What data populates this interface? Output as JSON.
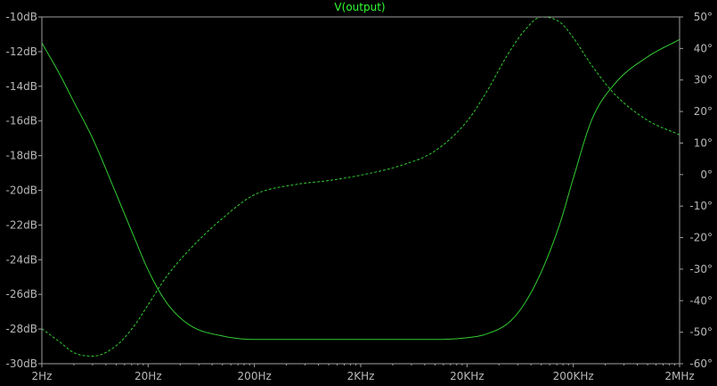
{
  "chart_data": {
    "type": "line",
    "title": "V(output)",
    "xlabel": "",
    "ylabel": "",
    "x_scale": "log",
    "xlim": [
      2,
      2000000
    ],
    "ylim_left": [
      -30,
      -10
    ],
    "ylim_right": [
      -60,
      50
    ],
    "grid": false,
    "x_ticks": [
      2,
      20,
      200,
      2000,
      20000,
      200000,
      2000000
    ],
    "x_tick_labels": [
      "2Hz",
      "20Hz",
      "200Hz",
      "2KHz",
      "20KHz",
      "200KHz",
      "2MHz"
    ],
    "y_left_ticks": [
      -10,
      -12,
      -14,
      -16,
      -18,
      -20,
      -22,
      -24,
      -26,
      -28,
      -30
    ],
    "y_left_tick_labels": [
      "-10dB",
      "-12dB",
      "-14dB",
      "-16dB",
      "-18dB",
      "-20dB",
      "-22dB",
      "-24dB",
      "-26dB",
      "-28dB",
      "-30dB"
    ],
    "y_right_ticks": [
      50,
      40,
      30,
      20,
      10,
      0,
      -10,
      -20,
      -30,
      -40,
      -50,
      -60
    ],
    "y_right_tick_labels": [
      "50°",
      "40°",
      "30°",
      "20°",
      "10°",
      "0°",
      "-10°",
      "-20°",
      "-30°",
      "-40°",
      "-50°",
      "-60°"
    ],
    "colors": {
      "background": "#000000",
      "trace": "#33cc33",
      "axis": "#a0a0a0",
      "text": "#b8b8b8"
    },
    "series": [
      {
        "axis": "left",
        "style": "solid",
        "unit": "dB",
        "x": [
          2,
          3,
          4,
          6,
          10,
          15,
          20,
          30,
          50,
          100,
          200,
          500,
          1000,
          2000,
          5000,
          10000,
          20000,
          30000,
          50000,
          70000,
          100000,
          150000,
          200000,
          300000,
          500000,
          1000000,
          2000000
        ],
        "y": [
          -11.5,
          -13.4,
          -14.9,
          -17.0,
          -20.2,
          -22.8,
          -24.6,
          -26.5,
          -27.8,
          -28.4,
          -28.6,
          -28.6,
          -28.6,
          -28.6,
          -28.6,
          -28.6,
          -28.5,
          -28.3,
          -27.6,
          -26.5,
          -24.7,
          -21.9,
          -19.3,
          -15.9,
          -13.8,
          -12.3,
          -11.3
        ]
      },
      {
        "axis": "right",
        "style": "dashed",
        "unit": "°",
        "x": [
          2,
          3,
          4,
          6,
          10,
          15,
          20,
          30,
          50,
          100,
          200,
          500,
          1000,
          2000,
          5000,
          10000,
          20000,
          30000,
          50000,
          70000,
          100000,
          150000,
          200000,
          300000,
          500000,
          1000000,
          2000000
        ],
        "y": [
          -48.9,
          -53.3,
          -56.5,
          -57.6,
          -54.3,
          -47.7,
          -41.3,
          -32.2,
          -23.5,
          -13.9,
          -6.4,
          -3.1,
          -1.9,
          -0.2,
          3.1,
          7.5,
          16.9,
          25.8,
          38.9,
          45.8,
          50.0,
          48.3,
          43.4,
          34.5,
          25.2,
          17.2,
          12.6
        ]
      }
    ]
  }
}
